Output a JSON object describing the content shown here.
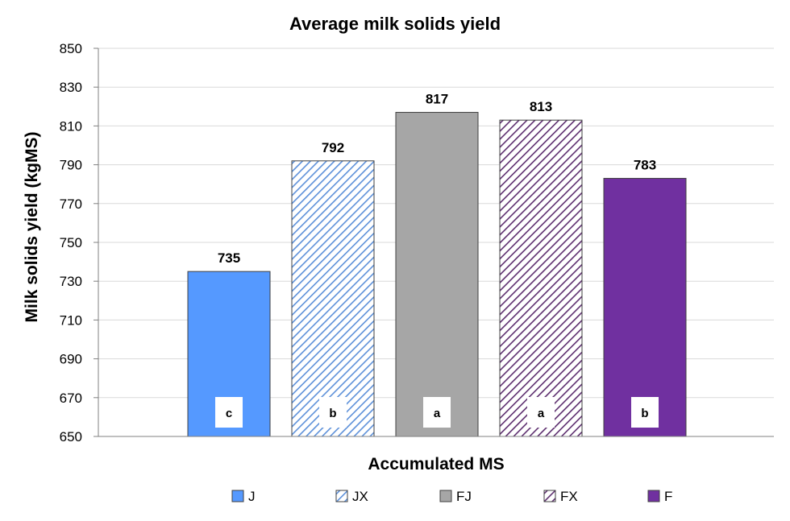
{
  "chart_data": {
    "type": "bar",
    "title": "Average milk solids yield",
    "xlabel": "Accumulated MS",
    "ylabel": "Milk solids yield (kgMS)",
    "ylim": [
      650,
      850
    ],
    "yticks": [
      650,
      670,
      690,
      710,
      730,
      750,
      770,
      790,
      810,
      830,
      850
    ],
    "grid": true,
    "legend_position": "bottom",
    "series": [
      {
        "name": "J",
        "value": 735,
        "significance": "c",
        "color": "#5599ff",
        "pattern": "solid"
      },
      {
        "name": "JX",
        "value": 792,
        "significance": "b",
        "color": "#5b8fd9",
        "pattern": "diagonal-hatch"
      },
      {
        "name": "FJ",
        "value": 817,
        "significance": "a",
        "color": "#a6a6a6",
        "pattern": "solid"
      },
      {
        "name": "FX",
        "value": 813,
        "significance": "a",
        "color": "#5c2d6e",
        "pattern": "diagonal-hatch"
      },
      {
        "name": "F",
        "value": 783,
        "significance": "b",
        "color": "#7030a0",
        "pattern": "solid"
      }
    ]
  }
}
